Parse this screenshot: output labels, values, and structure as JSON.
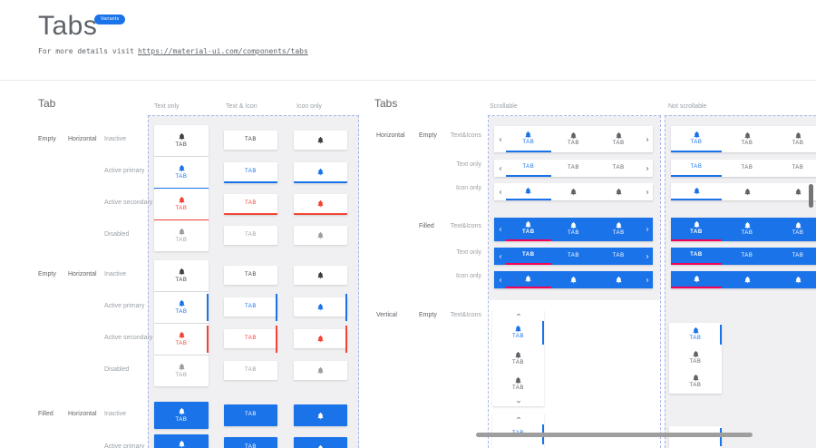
{
  "page": {
    "title": "Tabs",
    "badge": "Variants",
    "subtitle_prefix": "For more details visit",
    "subtitle_link": "https://material-ui.com/components/tabs"
  },
  "colors": {
    "primary": "#1a73e8",
    "secondary": "#f44336",
    "inactive": "#3c4043",
    "disabled": "#9e9e9e",
    "filled_active_indicator": "#f50057",
    "badge_bg": "#1a73e8",
    "container_bg": "#f0f0f2",
    "dashed_border": "#a7b3e8"
  },
  "tab_label": "TAB",
  "left": {
    "heading": "Tab",
    "columns": [
      "Text only",
      "Text & Icon",
      "Icon only"
    ],
    "groups": [
      {
        "fill": "Empty",
        "orientation": "Horizontal",
        "indicator": "bottom",
        "states": [
          {
            "label": "Inactive",
            "style": "inactive"
          },
          {
            "label": "Active primary",
            "style": "primary"
          },
          {
            "label": "Active secondary",
            "style": "secondary"
          },
          {
            "label": "Disabled",
            "style": "disabled"
          }
        ]
      },
      {
        "fill": "Empty",
        "orientation": "Horizontal",
        "indicator": "right",
        "states": [
          {
            "label": "Inactive",
            "style": "inactive"
          },
          {
            "label": "Active primary",
            "style": "primary"
          },
          {
            "label": "Active secondary",
            "style": "secondary"
          },
          {
            "label": "Disabled",
            "style": "disabled"
          }
        ]
      },
      {
        "fill": "Filled",
        "orientation": "Horizontal",
        "indicator": "none",
        "states": [
          {
            "label": "Inactive",
            "style": "filled"
          },
          {
            "label": "Active primary",
            "style": "filled"
          }
        ]
      }
    ]
  },
  "right": {
    "heading": "Tabs",
    "columns": [
      "Scrollable",
      "Not scrollable"
    ],
    "groups": [
      {
        "orientation": "Horizontal",
        "fill": "Empty",
        "rows": [
          "Text&Icons",
          "Text only",
          "Icon only"
        ]
      },
      {
        "orientation": "",
        "fill": "Filled",
        "rows": [
          "Text&Icons",
          "Text only",
          "Icon only"
        ]
      },
      {
        "orientation": "Vertical",
        "fill": "Empty",
        "rows": [
          "Text&Icons"
        ]
      }
    ]
  }
}
